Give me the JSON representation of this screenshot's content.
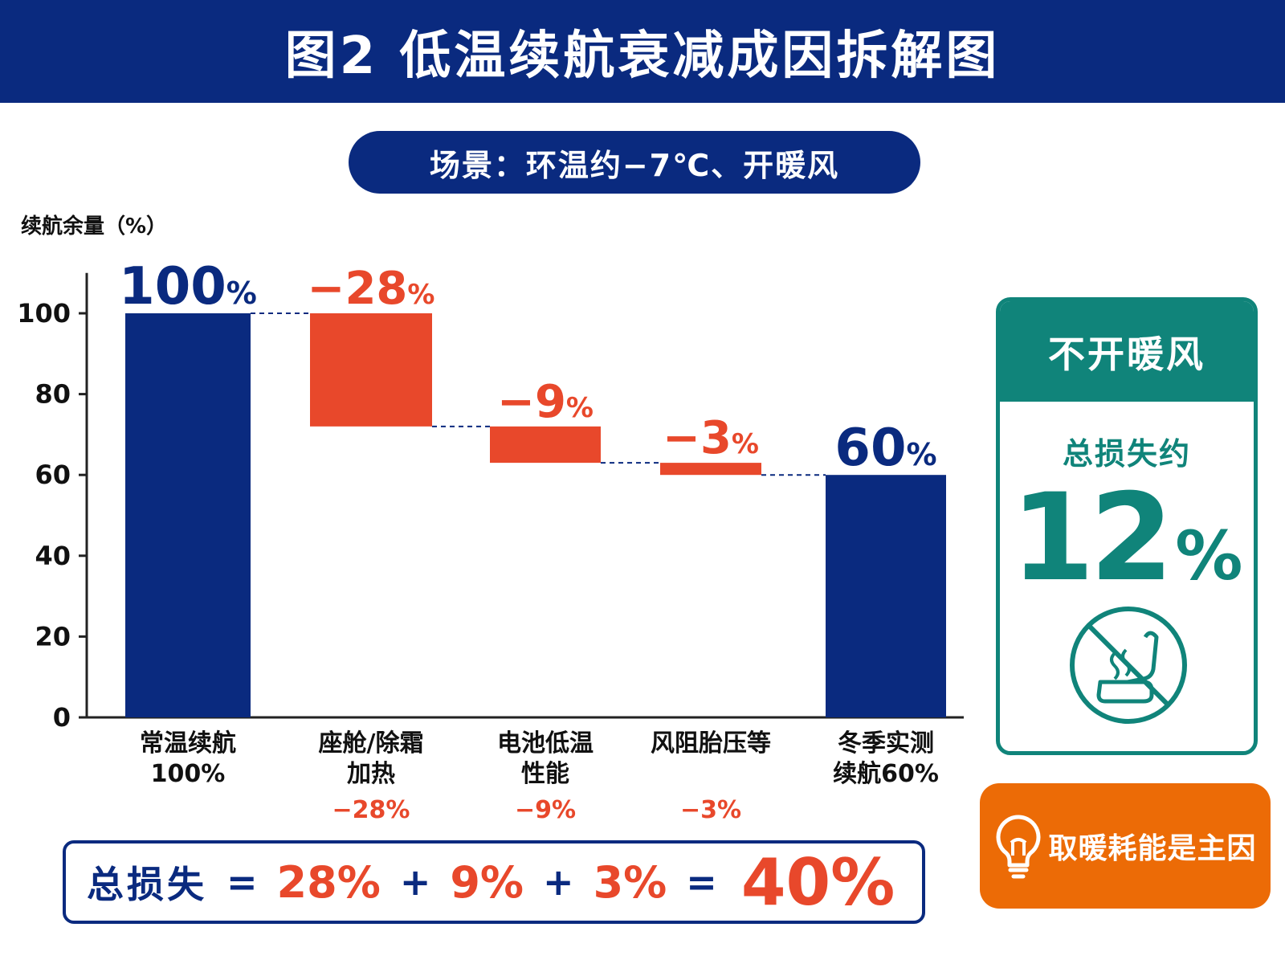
{
  "title": "图2 低温续航衰减成因拆解图",
  "scenario": "场景：环温约−7℃、开暖风",
  "colors": {
    "navy": "#0a2a7f",
    "loss_red": "#e8482b",
    "teal": "#10847a",
    "orange": "#ec6b06"
  },
  "chart_data": {
    "type": "bar",
    "subtype": "waterfall",
    "ylabel": "续航余量（%）",
    "ylim": [
      0,
      110
    ],
    "yticks": [
      0,
      20,
      40,
      60,
      80,
      100
    ],
    "grid": false,
    "bars": [
      {
        "kind": "total",
        "start": 0,
        "end": 100,
        "value_label": "100",
        "cat_lines": [
          "常温续航",
          "100%"
        ],
        "cat_value": ""
      },
      {
        "kind": "loss",
        "start": 100,
        "end": 72,
        "value_label": "−28",
        "cat_lines": [
          "座舱/除霜",
          "加热"
        ],
        "cat_value": "−28%"
      },
      {
        "kind": "loss",
        "start": 72,
        "end": 63,
        "value_label": "−9",
        "cat_lines": [
          "电池低温",
          "性能"
        ],
        "cat_value": "−9%"
      },
      {
        "kind": "loss",
        "start": 63,
        "end": 60,
        "value_label": "−3",
        "cat_lines": [
          "风阻胎压等",
          ""
        ],
        "cat_value": "−3%"
      },
      {
        "kind": "total",
        "start": 0,
        "end": 60,
        "value_label": "60",
        "cat_lines": [
          "冬季实测",
          "续航60%"
        ],
        "cat_value": ""
      }
    ],
    "percent_sign": "%"
  },
  "side_card": {
    "header": "不开暖风",
    "label": "总损失约",
    "value": "12",
    "unit": "%",
    "icon": "no-seat-heating-icon"
  },
  "tip": {
    "icon": "lightbulb-icon",
    "text": "取暖耗能是主因"
  },
  "formula": {
    "label": "总损失",
    "eq": "=",
    "plus": "+",
    "terms": [
      "28%",
      "9%",
      "3%"
    ],
    "total": "40%"
  }
}
